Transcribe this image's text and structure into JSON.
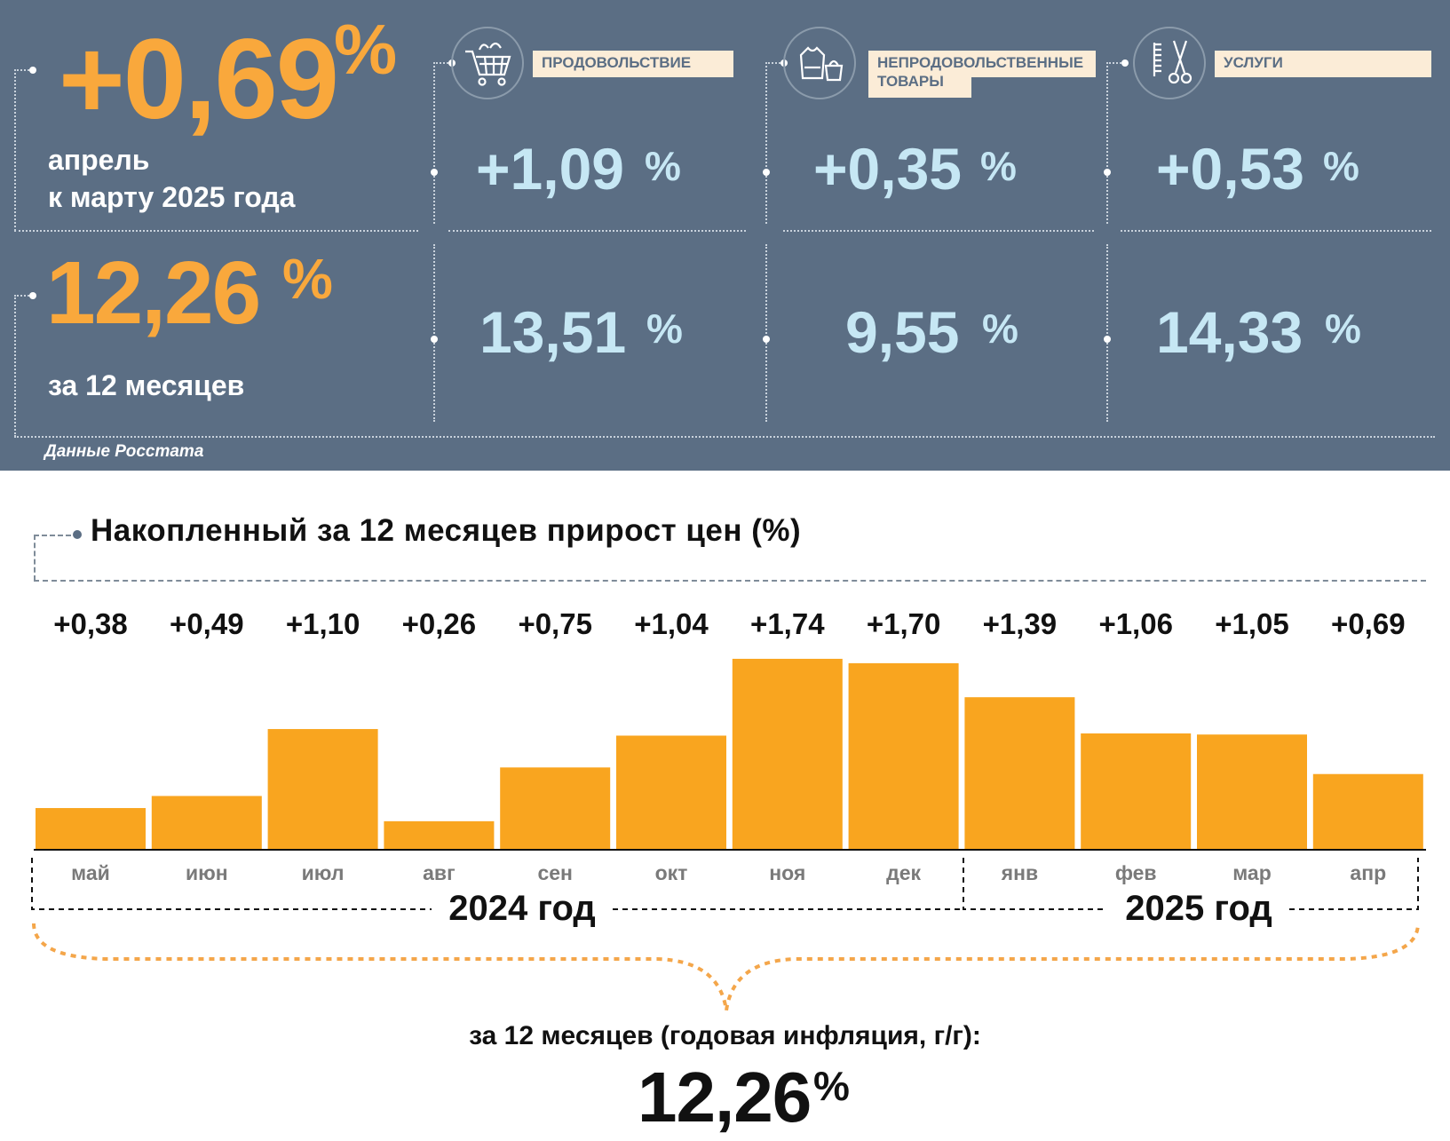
{
  "header": {
    "monthly_value": "+0,69",
    "monthly_unit": "%",
    "monthly_caption_line1": "апрель",
    "monthly_caption_line2": "к марту 2025 года",
    "annual_value": "12,26",
    "annual_unit": "%",
    "annual_caption": "за 12 месяцев",
    "source": "Данные Росстата"
  },
  "categories": [
    {
      "label": "ПРОДОВОЛЬСТВИЕ",
      "icon": "shopping-cart-icon",
      "monthly": "+1,09",
      "annual": "13,51",
      "unit": "%"
    },
    {
      "label_line1": "НЕПРОДОВОЛЬСТВЕННЫЕ",
      "label_line2": "ТОВАРЫ",
      "icon": "clothing-icon",
      "monthly": "+0,35",
      "annual": "9,55",
      "unit": "%"
    },
    {
      "label": "УСЛУГИ",
      "icon": "scissors-comb-icon",
      "monthly": "+0,53",
      "annual": "14,33",
      "unit": "%"
    }
  ],
  "chart_data": {
    "type": "bar",
    "title": "Накопленный за 12 месяцев прирост цен (%)",
    "categories": [
      "май",
      "июн",
      "июл",
      "авг",
      "сен",
      "окт",
      "ноя",
      "дек",
      "янв",
      "фев",
      "мар",
      "апр"
    ],
    "values": [
      0.38,
      0.49,
      1.1,
      0.26,
      0.75,
      1.04,
      1.74,
      1.7,
      1.39,
      1.06,
      1.05,
      0.69
    ],
    "value_labels": [
      "+0,38",
      "+0,49",
      "+1,10",
      "+0,26",
      "+0,75",
      "+1,04",
      "+1,74",
      "+1,70",
      "+1,39",
      "+1,06",
      "+1,05",
      "+0,69"
    ],
    "year_groups": [
      {
        "label": "2024 год",
        "months": 8
      },
      {
        "label": "2025 год",
        "months": 4
      }
    ],
    "bar_color": "#f9a51f",
    "ylim": [
      0,
      1.8
    ],
    "total_caption": "за 12 месяцев (годовая инфляция, г/г):",
    "total_value": "12,26",
    "total_unit": "%"
  },
  "colors": {
    "panel_bg": "#5b6e84",
    "orange": "#f9a83c",
    "light_blue": "#c6e7f4",
    "label_bg": "#fbecd7"
  }
}
